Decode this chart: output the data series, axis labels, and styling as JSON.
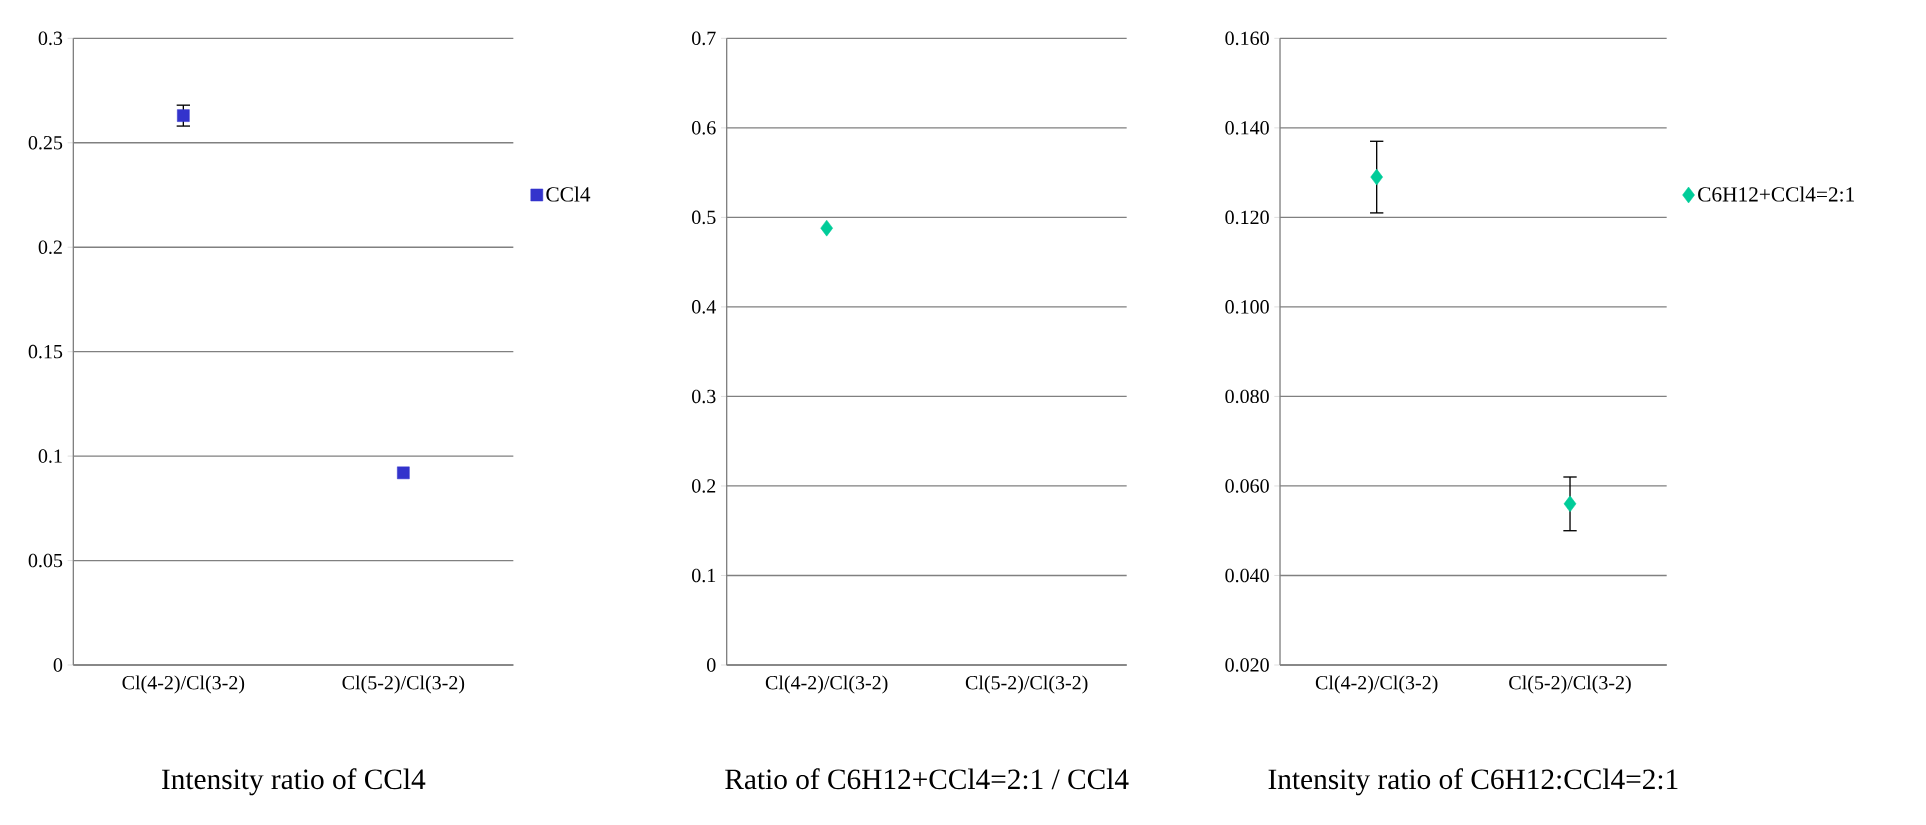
{
  "chart_data": [
    {
      "type": "scatter",
      "title": "Intensity ratio of CCl4",
      "categories": [
        "Cl(4-2)/Cl(3-2)",
        "Cl(5-2)/Cl(3-2)"
      ],
      "series": [
        {
          "name": "CCl4",
          "color": "#3333cc",
          "values": [
            0.263,
            0.092
          ],
          "errors": [
            0.005,
            null
          ]
        }
      ],
      "ylim": [
        0,
        0.3
      ],
      "yticks": [
        0,
        0.05,
        0.1,
        0.15,
        0.2,
        0.25,
        0.3
      ],
      "grid": "y",
      "legend": "right",
      "marker": "square"
    },
    {
      "type": "scatter",
      "title": "Ratio of C6H12+CCl4=2:1 / CCl4",
      "categories": [
        "Cl(4-2)/Cl(3-2)",
        "Cl(5-2)/Cl(3-2)"
      ],
      "series": [
        {
          "color": "#00cc99",
          "values": [
            0.488,
            null
          ]
        }
      ],
      "ylim": [
        0,
        0.7
      ],
      "yticks": [
        0,
        0.1,
        0.2,
        0.3,
        0.4,
        0.5,
        0.6,
        0.7
      ],
      "grid": "y",
      "marker": "diamond"
    },
    {
      "type": "scatter",
      "title": "Intensity ratio of C6H12:CCl4=2:1",
      "categories": [
        "Cl(4-2)/Cl(3-2)",
        "Cl(5-2)/Cl(3-2)"
      ],
      "series": [
        {
          "name": "C6H12+CCl4=2:1",
          "color": "#00cc99",
          "values": [
            0.129,
            0.056
          ],
          "errors": [
            0.008,
            0.006
          ]
        }
      ],
      "ylim": [
        0.02,
        0.16
      ],
      "yticks": [
        {
          "value": 0.02,
          "label": "0.020"
        },
        {
          "value": 0.04,
          "label": "0.040"
        },
        {
          "value": 0.06,
          "label": "0.060"
        },
        {
          "value": 0.08,
          "label": "0.080"
        },
        {
          "value": 0.1,
          "label": "0.100"
        },
        {
          "value": 0.12,
          "label": "0.120"
        },
        {
          "value": 0.14,
          "label": "0.140"
        },
        {
          "value": 0.16,
          "label": "0.160"
        }
      ],
      "grid": "y",
      "legend": "right",
      "marker": "diamond"
    }
  ]
}
